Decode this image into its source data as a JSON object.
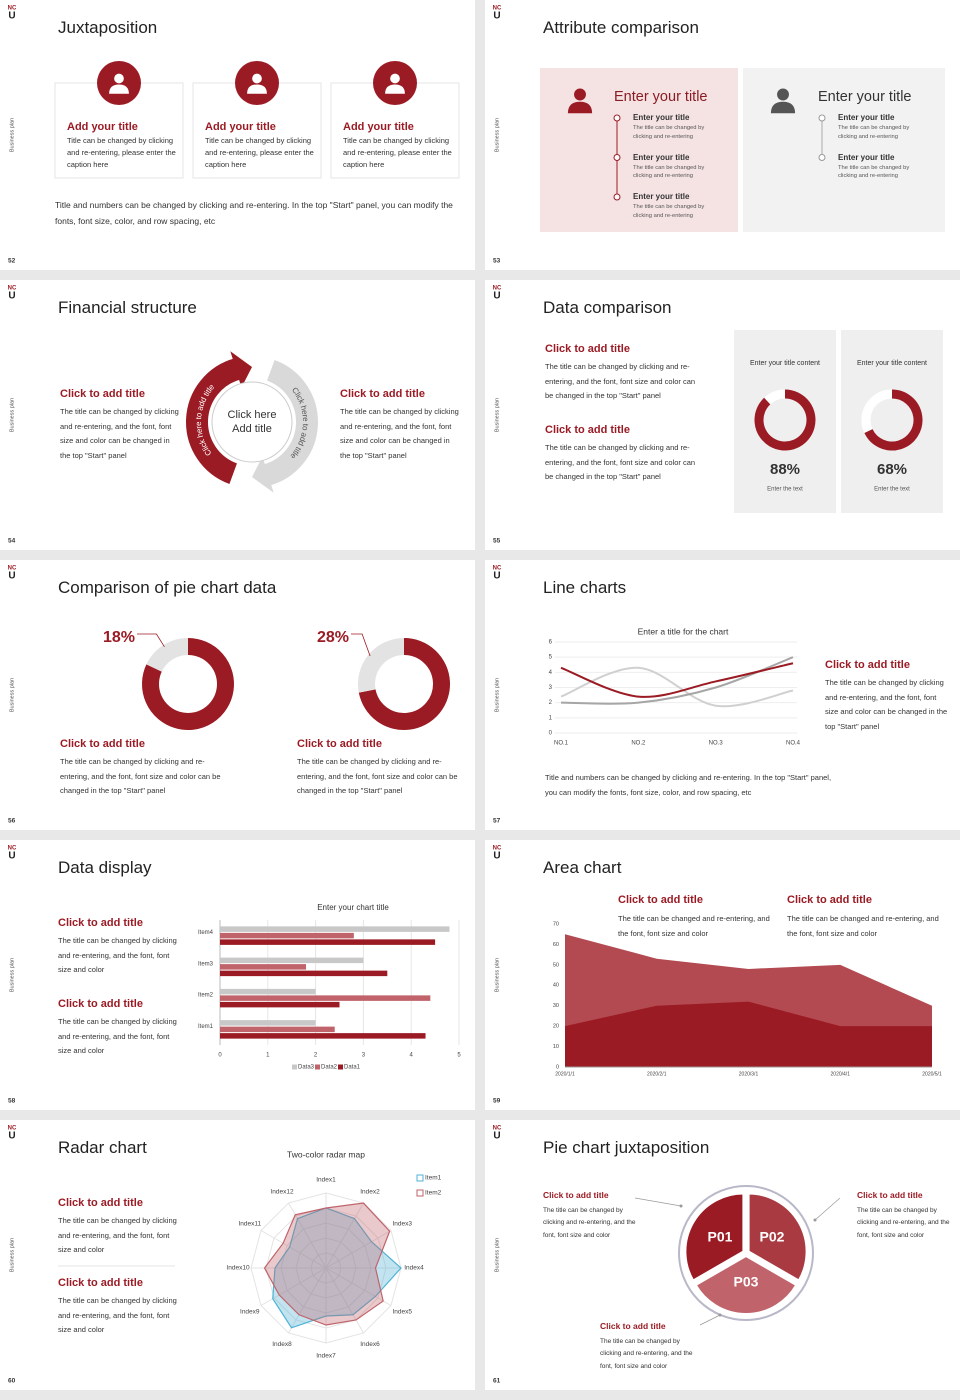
{
  "logo": {
    "top": "NC",
    "bottom": "U"
  },
  "side_label": "Business plan",
  "accent": "#9b1b24",
  "slides": [
    {
      "page": "52",
      "title": "Juxtaposition",
      "cards": [
        {
          "title": "Add your title",
          "text": "Title can be changed by clicking and re-entering, please enter the caption here"
        },
        {
          "title": "Add your title",
          "text": "Title can be changed by clicking and re-entering, please enter the caption here"
        },
        {
          "title": "Add your title",
          "text": "Title can be changed by clicking and re-entering, please enter the caption here"
        }
      ],
      "note": "Title and numbers can be changed by clicking and re-entering. In the top \"Start\" panel, you can modify the fonts, font size, color, and row spacing, etc"
    },
    {
      "page": "53",
      "title": "Attribute comparison",
      "panels": [
        {
          "title": "Enter your title",
          "items": [
            {
              "title": "Enter your title",
              "text": "The title can be changed by clicking and re-entering"
            },
            {
              "title": "Enter your title",
              "text": "The title can be changed by clicking and re-entering"
            },
            {
              "title": "Enter your title",
              "text": "The title can be changed by clicking and re-entering"
            }
          ]
        },
        {
          "title": "Enter your title",
          "items": [
            {
              "title": "Enter your title",
              "text": "The title can be changed by clicking and re-entering"
            },
            {
              "title": "Enter your title",
              "text": "The title can be changed by clicking and re-entering"
            }
          ]
        }
      ]
    },
    {
      "page": "54",
      "title": "Financial structure",
      "blocks": [
        {
          "title": "Click to add title",
          "text": "The title can be changed by clicking and re-entering, and the font, font size and color can be changed in the top \"Start\" panel"
        },
        {
          "title": "Click to add title",
          "text": "The title can be changed by clicking and re-entering, and the font, font size and color can be changed in the top \"Start\" panel"
        }
      ],
      "cycle": {
        "center": [
          "Click here",
          "Add title"
        ],
        "arcs": [
          "Click here to add title",
          "Click here to add title"
        ]
      }
    },
    {
      "page": "55",
      "title": "Data comparison",
      "blocks": [
        {
          "title": "Click to add title",
          "text": "The title can be changed by clicking and re-entering, and the font, font size and color can be changed in the top \"Start\" panel"
        },
        {
          "title": "Click to add title",
          "text": "The title can be changed by clicking and re-entering, and the font, font size and color can be changed in the top \"Start\" panel"
        }
      ],
      "cards": [
        {
          "heading": "Enter your title content",
          "value": 88,
          "value_label": "88%",
          "caption": "Enter the text"
        },
        {
          "heading": "Enter your title content",
          "value": 68,
          "value_label": "68%",
          "caption": "Enter the text"
        }
      ]
    },
    {
      "page": "56",
      "title": "Comparison of pie chart data",
      "pies": [
        {
          "value": 18,
          "value_label": "18%",
          "title": "Click to add title",
          "text": "The title can be changed by clicking and re-entering, and the font, font size and color can be changed in the top \"Start\" panel"
        },
        {
          "value": 28,
          "value_label": "28%",
          "title": "Click to add title",
          "text": "The title can be changed by clicking and re-entering, and the font, font size and color can be changed in the top \"Start\" panel"
        }
      ]
    },
    {
      "page": "57",
      "title": "Line charts",
      "chart": {
        "type": "line",
        "title": "Enter a title for the chart",
        "categories": [
          "NO.1",
          "NO.2",
          "NO.3",
          "NO.4"
        ],
        "ylim": [
          0,
          6
        ],
        "yticks": [
          0,
          1,
          2,
          3,
          4,
          5,
          6
        ],
        "grid": true,
        "smooth": true,
        "series": [
          {
            "color": "#d0d0d0",
            "values": [
              2.4,
              4.3,
              1.8,
              2.8
            ]
          },
          {
            "color": "#a6a6a6",
            "values": [
              2.0,
              2.0,
              3.0,
              5.0
            ]
          },
          {
            "color": "#9b1b24",
            "values": [
              4.3,
              2.4,
              3.4,
              4.6
            ]
          }
        ]
      },
      "block": {
        "title": "Click to add title",
        "text": "The title can be changed by clicking and re-entering, and the font, font size and color can be changed in the top \"Start\" panel"
      },
      "note": "Title and numbers can be changed by clicking and re-entering. In the top \"Start\" panel, you can modify the fonts, font size, color, and row spacing, etc"
    },
    {
      "page": "58",
      "title": "Data display",
      "blocks": [
        {
          "title": "Click to add title",
          "text": "The title can be changed by clicking and re-entering, and the font, font size and color"
        },
        {
          "title": "Click to add title",
          "text": "The title can be changed by clicking and re-entering, and the font, font size and color"
        }
      ],
      "chart": {
        "type": "bar",
        "orientation": "horizontal",
        "title": "Enter your chart title",
        "categories": [
          "Item1",
          "Item2",
          "Item3",
          "Item4"
        ],
        "xlim": [
          0,
          5
        ],
        "xticks": [
          0,
          1,
          2,
          3,
          4,
          5
        ],
        "grid": true,
        "legend": "bottom",
        "series": [
          {
            "name": "Data3",
            "color": "#c8c8c8",
            "values": [
              2.0,
              2.0,
              3.0,
              4.8
            ]
          },
          {
            "name": "Data2",
            "color": "#c0636a",
            "values": [
              2.4,
              4.4,
              1.8,
              2.8
            ]
          },
          {
            "name": "Data1",
            "color": "#9b1b24",
            "values": [
              4.3,
              2.5,
              3.5,
              4.5
            ]
          }
        ]
      }
    },
    {
      "page": "59",
      "title": "Area chart",
      "blocks": [
        {
          "title": "Click to add title",
          "text": "The title can be changed and re-entering, and the font, font size and color"
        },
        {
          "title": "Click to add title",
          "text": "The title can be changed and re-entering, and the font, font size and color"
        }
      ],
      "chart": {
        "type": "area",
        "x": [
          "2020/1/1",
          "2020/2/1",
          "2020/3/1",
          "2020/4/1",
          "2020/5/1"
        ],
        "ylim": [
          0,
          70
        ],
        "yticks": [
          0,
          10,
          20,
          30,
          40,
          50,
          60,
          70
        ],
        "series": [
          {
            "color": "#b34a51",
            "values": [
              65,
              53,
              48,
              50,
              30
            ]
          },
          {
            "color": "#9b1b24",
            "values": [
              20,
              30,
              32,
              20,
              20
            ]
          }
        ]
      }
    },
    {
      "page": "60",
      "title": "Radar chart",
      "blocks": [
        {
          "title": "Click to add title",
          "text": "The title can be changed by clicking and re-entering, and the font, font size and color"
        },
        {
          "title": "Click to add title",
          "text": "The title can be changed by clicking and re-entering, and the font, font size and color"
        }
      ],
      "chart": {
        "type": "radar",
        "title": "Two-color radar map",
        "categories": [
          "Index1",
          "Index2",
          "Index3",
          "Index4",
          "Index5",
          "Index6",
          "Index7",
          "Index8",
          "Index9",
          "Index10",
          "Index11",
          "Index12"
        ],
        "rlim": [
          0,
          5
        ],
        "rticks": [
          1,
          2,
          3,
          4,
          5
        ],
        "legend": "top-right",
        "series": [
          {
            "name": "Item1",
            "color": "#4fb3d6",
            "values": [
              4,
              3.8,
              3.5,
              5,
              3.8,
              3.6,
              3.2,
              4.6,
              4.1,
              3.4,
              2.8,
              3.8
            ]
          },
          {
            "name": "Item2",
            "color": "#c0636a",
            "values": [
              4,
              5,
              4.9,
              3.3,
              4.4,
              4,
              3.8,
              3.6,
              3.6,
              4.1,
              3.3,
              4.1
            ]
          }
        ]
      }
    },
    {
      "page": "61",
      "title": "Pie chart juxtaposition",
      "segments": [
        "P01",
        "P02",
        "P03"
      ],
      "blocks": [
        {
          "title": "Click to add title",
          "text": "The title can be changed by clicking and re-entering, and the font, font size and color"
        },
        {
          "title": "Click to add title",
          "text": "The title can be changed by clicking and re-entering, and the font, font size and color"
        },
        {
          "title": "Click to add title",
          "text": "The title can be changed by clicking and re-entering, and the font, font size and color"
        }
      ]
    }
  ]
}
